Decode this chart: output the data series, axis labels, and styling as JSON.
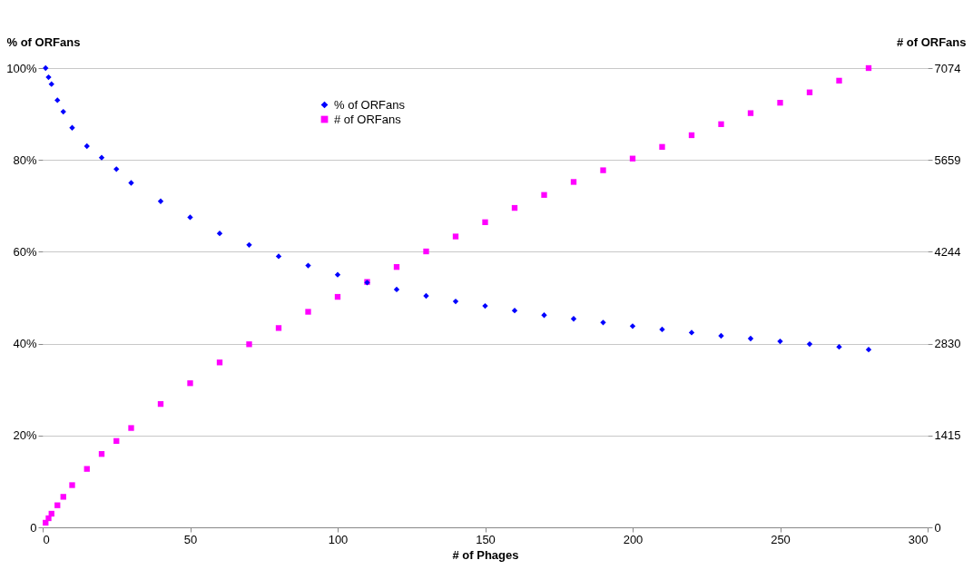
{
  "chart_data": {
    "type": "scatter",
    "xlabel": "# of Phages",
    "ylabel": "% of ORFans",
    "y2label": "# of ORFans",
    "xlim": [
      0,
      300
    ],
    "xticks": [
      0,
      50,
      100,
      150,
      200,
      250,
      300
    ],
    "ylim": [
      0,
      100
    ],
    "yticks": [
      0,
      {
        "value": 20,
        "label": "20%"
      },
      {
        "value": 40,
        "label": "40%"
      },
      {
        "value": 60,
        "label": "60%"
      },
      {
        "value": 80,
        "label": "80%"
      },
      {
        "value": 100,
        "label": "100%"
      }
    ],
    "y2lim": [
      0,
      7074
    ],
    "y2ticks": [
      0,
      1415,
      2830,
      4244,
      5659,
      7074
    ],
    "grid": "y",
    "legend": "top",
    "x": [
      1,
      2,
      3,
      5,
      7,
      10,
      15,
      20,
      25,
      30,
      40,
      50,
      60,
      70,
      80,
      90,
      100,
      110,
      120,
      130,
      140,
      150,
      160,
      170,
      180,
      190,
      200,
      210,
      220,
      230,
      240,
      250,
      260,
      270,
      280
    ],
    "series": [
      {
        "name": "% of ORFans",
        "color": "#0000ff",
        "marker": "diamond",
        "values": [
          100,
          98,
          96.5,
          93,
          90.5,
          87,
          83,
          80.5,
          78,
          75,
          71,
          67.5,
          64,
          61.5,
          59,
          57,
          55,
          53.3,
          51.8,
          50.4,
          49.2,
          48.2,
          47.2,
          46.2,
          45.4,
          44.6,
          43.8,
          43.1,
          42.4,
          41.7,
          41.1,
          40.5,
          39.9,
          39.3,
          38.7
        ]
      },
      {
        "name": "# of ORFans",
        "color": "#ff00ff",
        "marker": "square",
        "axis": "y2",
        "values": [
          71,
          140,
          210,
          340,
          470,
          650,
          900,
          1130,
          1330,
          1530,
          1900,
          2220,
          2540,
          2820,
          3070,
          3320,
          3550,
          3780,
          4010,
          4250,
          4480,
          4700,
          4920,
          5120,
          5320,
          5500,
          5680,
          5860,
          6040,
          6210,
          6380,
          6540,
          6700,
          6880,
          7074
        ]
      }
    ]
  }
}
